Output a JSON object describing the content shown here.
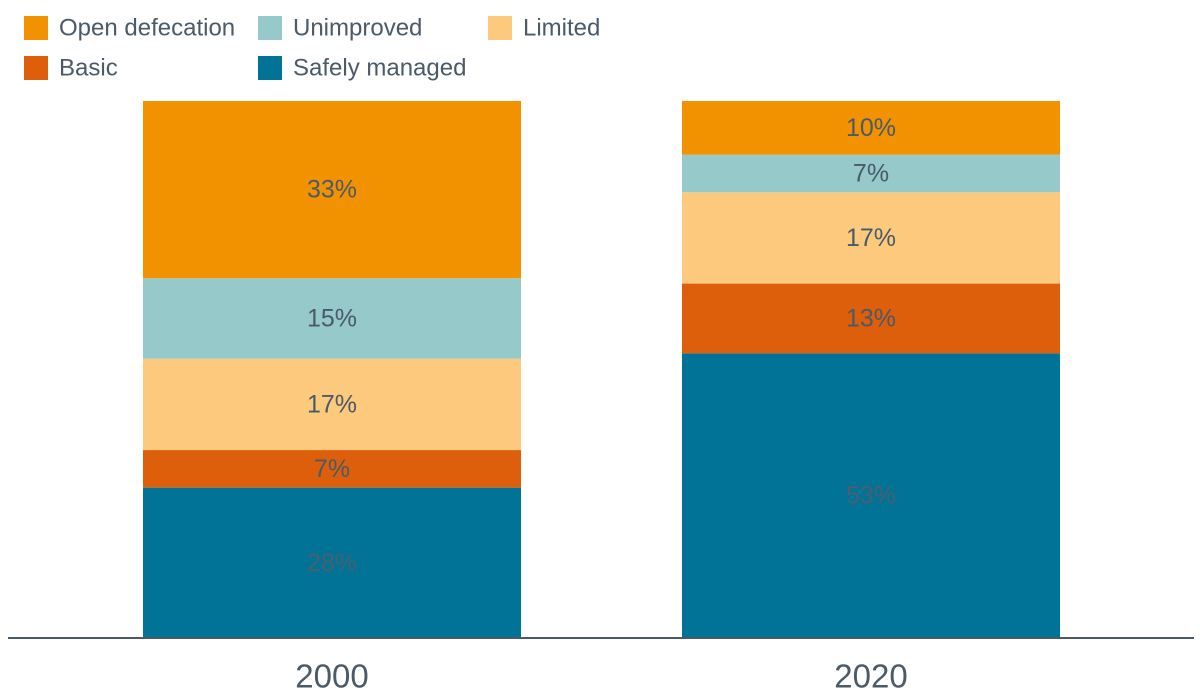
{
  "chart_data": {
    "type": "bar",
    "stacked": true,
    "normalized": true,
    "title": "",
    "xlabel": "",
    "ylabel": "",
    "ylim": [
      0,
      100
    ],
    "grid": false,
    "legend_position": "top-left",
    "categories": [
      "2000",
      "2020"
    ],
    "series": [
      {
        "name": "Safely managed",
        "values": [
          28,
          53
        ],
        "labels": [
          "28%",
          "53%"
        ],
        "color": "#007396",
        "label_color": "#4a5f70"
      },
      {
        "name": "Basic",
        "values": [
          7,
          13
        ],
        "labels": [
          "7%",
          "13%"
        ],
        "color": "#de5f0b",
        "label_color": "#4a5a68"
      },
      {
        "name": "Limited",
        "values": [
          17,
          17
        ],
        "labels": [
          "17%",
          "17%"
        ],
        "color": "#fcc97d",
        "label_color": "#4a5a68"
      },
      {
        "name": "Unimproved",
        "values": [
          15,
          7
        ],
        "labels": [
          "15%",
          "7%"
        ],
        "color": "#95c9ca",
        "label_color": "#4a5a68"
      },
      {
        "name": "Open defecation",
        "values": [
          33,
          10
        ],
        "labels": [
          "33%",
          "10%"
        ],
        "color": "#f29200",
        "label_color": "#4a5a68"
      }
    ],
    "legend": [
      "Open defecation",
      "Unimproved",
      "Limited",
      "Basic",
      "Safely managed"
    ],
    "axis_color": "#4a5a68",
    "tick_label_color": "#4a5a68"
  }
}
